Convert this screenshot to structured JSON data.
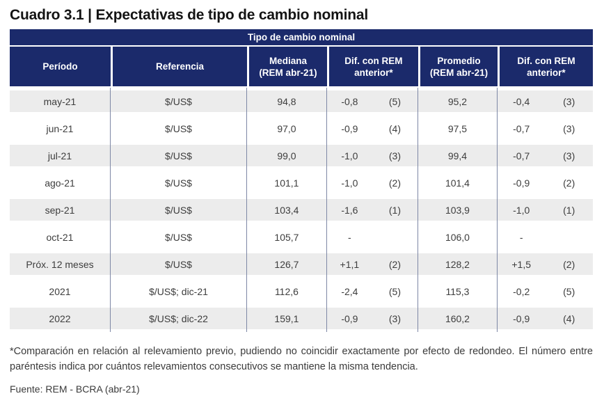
{
  "title": "Cuadro 3.1 | Expectativas de tipo de cambio nominal",
  "colors": {
    "header_navy": "#1b2a6b",
    "row_stripe": "#ececec",
    "column_line": "#7d87a5",
    "header_text": "#ffffff",
    "body_text": "#3d3d3d"
  },
  "table": {
    "band_title": "Tipo de cambio nominal",
    "columns": [
      {
        "line1": "Período",
        "line2": ""
      },
      {
        "line1": "Referencia",
        "line2": ""
      },
      {
        "line1": "Mediana",
        "line2": "(REM abr-21)"
      },
      {
        "line1": "Dif. con REM",
        "line2": "anterior*"
      },
      {
        "line1": "Promedio",
        "line2": "(REM abr-21)"
      },
      {
        "line1": "Dif. con REM",
        "line2": "anterior*"
      }
    ],
    "rows": [
      {
        "periodo": "may-21",
        "referencia": "$/US$",
        "mediana": "94,8",
        "dif_mediana": "-0,8",
        "dif_mediana_streak": "(5)",
        "promedio": "95,2",
        "dif_promedio": "-0,4",
        "dif_promedio_streak": "(3)"
      },
      {
        "periodo": "jun-21",
        "referencia": "$/US$",
        "mediana": "97,0",
        "dif_mediana": "-0,9",
        "dif_mediana_streak": "(4)",
        "promedio": "97,5",
        "dif_promedio": "-0,7",
        "dif_promedio_streak": "(3)"
      },
      {
        "periodo": "jul-21",
        "referencia": "$/US$",
        "mediana": "99,0",
        "dif_mediana": "-1,0",
        "dif_mediana_streak": "(3)",
        "promedio": "99,4",
        "dif_promedio": "-0,7",
        "dif_promedio_streak": "(3)"
      },
      {
        "periodo": "ago-21",
        "referencia": "$/US$",
        "mediana": "101,1",
        "dif_mediana": "-1,0",
        "dif_mediana_streak": "(2)",
        "promedio": "101,4",
        "dif_promedio": "-0,9",
        "dif_promedio_streak": "(2)"
      },
      {
        "periodo": "sep-21",
        "referencia": "$/US$",
        "mediana": "103,4",
        "dif_mediana": "-1,6",
        "dif_mediana_streak": "(1)",
        "promedio": "103,9",
        "dif_promedio": "-1,0",
        "dif_promedio_streak": "(1)"
      },
      {
        "periodo": "oct-21",
        "referencia": "$/US$",
        "mediana": "105,7",
        "dif_mediana": "-",
        "dif_mediana_streak": "",
        "promedio": "106,0",
        "dif_promedio": "-",
        "dif_promedio_streak": ""
      },
      {
        "periodo": "Próx. 12 meses",
        "referencia": "$/US$",
        "mediana": "126,7",
        "dif_mediana": "+1,1",
        "dif_mediana_streak": "(2)",
        "promedio": "128,2",
        "dif_promedio": "+1,5",
        "dif_promedio_streak": "(2)"
      },
      {
        "periodo": "2021",
        "referencia": "$/US$; dic-21",
        "mediana": "112,6",
        "dif_mediana": "-2,4",
        "dif_mediana_streak": "(5)",
        "promedio": "115,3",
        "dif_promedio": "-0,2",
        "dif_promedio_streak": "(5)"
      },
      {
        "periodo": "2022",
        "referencia": "$/US$; dic-22",
        "mediana": "159,1",
        "dif_mediana": "-0,9",
        "dif_mediana_streak": "(3)",
        "promedio": "160,2",
        "dif_promedio": "-0,9",
        "dif_promedio_streak": "(4)"
      }
    ]
  },
  "footnote": "*Comparación en relación al relevamiento previo, pudiendo no coincidir exactamente por efecto de redondeo. El número entre paréntesis indica por cuántos relevamientos consecutivos se mantiene la misma tendencia.",
  "source": "Fuente: REM - BCRA (abr-21)"
}
